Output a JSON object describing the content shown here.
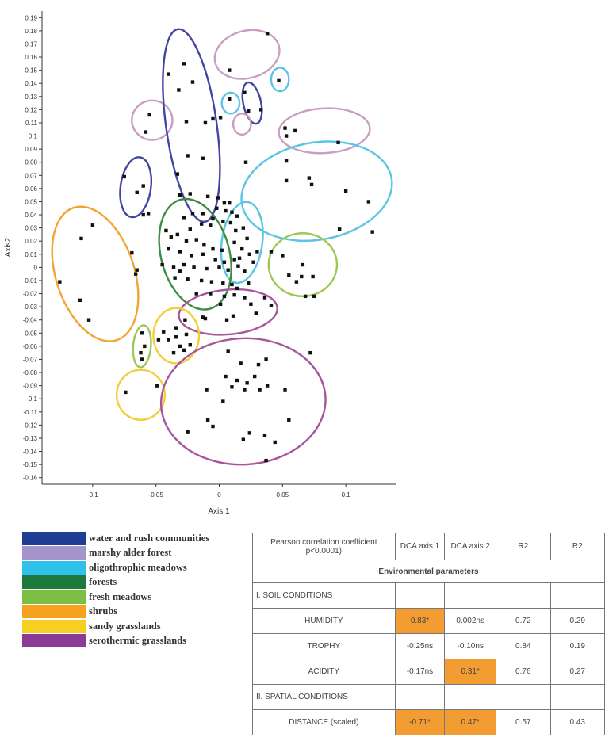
{
  "chart_data": {
    "type": "scatter",
    "xlabel": "Axis 1",
    "ylabel": "Axis2",
    "xlim": [
      -0.14,
      0.14
    ],
    "ylim": [
      -0.165,
      0.195
    ],
    "xticks": [
      -0.1,
      -0.05,
      0,
      0.05,
      0.1
    ],
    "xtick_labels": [
      "-0.1",
      "-0.05",
      "0",
      "0.05",
      "0.1"
    ],
    "yticks": [
      0.19,
      0.18,
      0.17,
      0.16,
      0.15,
      0.14,
      0.13,
      0.12,
      0.11,
      0.1,
      0.09,
      0.08,
      0.07,
      0.06,
      0.05,
      0.04,
      0.03,
      0.02,
      0.01,
      0,
      -0.01,
      -0.02,
      -0.03,
      -0.04,
      -0.05,
      -0.06,
      -0.07,
      -0.08,
      -0.09,
      -0.1,
      -0.11,
      -0.12,
      -0.13,
      -0.14,
      -0.15,
      -0.16
    ],
    "ytick_labels": [
      "0.19",
      "0.18",
      "0.17",
      "0.16",
      "0.15",
      "0.14",
      "0.13",
      "0.12",
      "0.11",
      "0.1",
      "0.09",
      "0.08",
      "0.07",
      "0.06",
      "0.05",
      "0.04",
      "0.03",
      "0.02",
      "0.01",
      "0",
      "-0.01",
      "-0.02",
      "-0.03",
      "-0.04",
      "-0.05",
      "-0.06",
      "-0.07",
      "-0.08",
      "-0.09",
      "-0.1",
      "-0.11",
      "-0.12",
      "-0.13",
      "-0.14",
      "-0.15",
      "-0.16"
    ],
    "grid": false,
    "points": [
      [
        0.038,
        0.178
      ],
      [
        0.008,
        0.15
      ],
      [
        0.047,
        0.142
      ],
      [
        0.008,
        0.128
      ],
      [
        0.02,
        0.133
      ],
      [
        0.023,
        0.119
      ],
      [
        0.033,
        0.12
      ],
      [
        0.06,
        0.104
      ],
      [
        0.052,
        0.106
      ],
      [
        0.053,
        0.1
      ],
      [
        0.094,
        0.095
      ],
      [
        -0.028,
        0.155
      ],
      [
        -0.04,
        0.147
      ],
      [
        -0.032,
        0.135
      ],
      [
        -0.021,
        0.141
      ],
      [
        -0.026,
        0.111
      ],
      [
        -0.011,
        0.11
      ],
      [
        -0.005,
        0.113
      ],
      [
        0.001,
        0.114
      ],
      [
        -0.025,
        0.085
      ],
      [
        -0.013,
        0.083
      ],
      [
        -0.033,
        0.071
      ],
      [
        -0.031,
        0.055
      ],
      [
        -0.023,
        0.056
      ],
      [
        -0.009,
        0.054
      ],
      [
        -0.055,
        0.116
      ],
      [
        -0.058,
        0.103
      ],
      [
        -0.075,
        0.069
      ],
      [
        -0.06,
        0.062
      ],
      [
        -0.065,
        0.057
      ],
      [
        -0.056,
        0.041
      ],
      [
        -0.06,
        0.04
      ],
      [
        0.021,
        0.08
      ],
      [
        0.053,
        0.081
      ],
      [
        0.053,
        0.066
      ],
      [
        0.071,
        0.068
      ],
      [
        0.073,
        0.063
      ],
      [
        0.1,
        0.058
      ],
      [
        0.118,
        0.05
      ],
      [
        0.121,
        0.027
      ],
      [
        0.095,
        0.029
      ],
      [
        -0.001,
        0.053
      ],
      [
        0.004,
        0.049
      ],
      [
        0.008,
        0.049
      ],
      [
        -0.002,
        0.045
      ],
      [
        0.005,
        0.043
      ],
      [
        0.01,
        0.042
      ],
      [
        -0.005,
        0.037
      ],
      [
        0.003,
        0.035
      ],
      [
        0.009,
        0.034
      ],
      [
        0.014,
        0.039
      ],
      [
        -0.021,
        0.041
      ],
      [
        -0.028,
        0.038
      ],
      [
        -0.014,
        0.033
      ],
      [
        -0.007,
        0.032
      ],
      [
        0.013,
        0.028
      ],
      [
        0.019,
        0.03
      ],
      [
        0.022,
        0.022
      ],
      [
        0.018,
        0.014
      ],
      [
        0.024,
        0.01
      ],
      [
        0.016,
        0.007
      ],
      [
        0.027,
        0.004
      ],
      [
        0.03,
        0.012
      ],
      [
        0.012,
        0.019
      ],
      [
        0.015,
        0.001
      ],
      [
        -0.042,
        0.028
      ],
      [
        -0.033,
        0.025
      ],
      [
        -0.026,
        0.02
      ],
      [
        -0.018,
        0.021
      ],
      [
        -0.012,
        0.017
      ],
      [
        -0.005,
        0.014
      ],
      [
        0.002,
        0.013
      ],
      [
        -0.04,
        0.014
      ],
      [
        -0.031,
        0.012
      ],
      [
        -0.022,
        0.009
      ],
      [
        -0.013,
        0.01
      ],
      [
        -0.003,
        0.006
      ],
      [
        0.004,
        0.004
      ],
      [
        0.012,
        0.006
      ],
      [
        -0.045,
        0.002
      ],
      [
        -0.036,
        0
      ],
      [
        -0.028,
        0.002
      ],
      [
        -0.02,
        0
      ],
      [
        -0.01,
        -0.001
      ],
      [
        0,
        0
      ],
      [
        0.007,
        -0.002
      ],
      [
        -0.035,
        -0.008
      ],
      [
        -0.025,
        -0.009
      ],
      [
        -0.014,
        -0.01
      ],
      [
        -0.006,
        -0.011
      ],
      [
        0.003,
        -0.012
      ],
      [
        0.01,
        -0.013
      ],
      [
        -0.018,
        -0.02
      ],
      [
        -0.007,
        -0.02
      ],
      [
        0.004,
        -0.022
      ],
      [
        0.012,
        -0.021
      ],
      [
        0.001,
        -0.028
      ],
      [
        0.014,
        -0.016
      ],
      [
        -0.038,
        0.023
      ],
      [
        -0.023,
        0.029
      ],
      [
        -0.013,
        0.041
      ],
      [
        -0.031,
        -0.003
      ],
      [
        0.02,
        -0.003
      ],
      [
        0.023,
        -0.012
      ],
      [
        -0.1,
        0.032
      ],
      [
        -0.109,
        0.022
      ],
      [
        -0.069,
        0.011
      ],
      [
        -0.065,
        -0.002
      ],
      [
        -0.066,
        -0.005
      ],
      [
        -0.126,
        -0.011
      ],
      [
        -0.11,
        -0.025
      ],
      [
        -0.103,
        -0.04
      ],
      [
        0.041,
        0.012
      ],
      [
        0.05,
        0.009
      ],
      [
        0.066,
        0.002
      ],
      [
        0.055,
        -0.006
      ],
      [
        0.065,
        -0.007
      ],
      [
        0.074,
        -0.007
      ],
      [
        0.061,
        -0.011
      ],
      [
        0.068,
        -0.022
      ],
      [
        0.075,
        -0.022
      ],
      [
        0.02,
        -0.023
      ],
      [
        0.036,
        -0.023
      ],
      [
        0.041,
        -0.029
      ],
      [
        0.029,
        -0.035
      ],
      [
        0.011,
        -0.037
      ],
      [
        0.025,
        -0.028
      ],
      [
        -0.013,
        -0.038
      ],
      [
        -0.011,
        -0.039
      ],
      [
        0.006,
        -0.04
      ],
      [
        -0.027,
        -0.04
      ],
      [
        -0.034,
        -0.046
      ],
      [
        -0.044,
        -0.049
      ],
      [
        -0.034,
        -0.053
      ],
      [
        -0.026,
        -0.051
      ],
      [
        -0.048,
        -0.055
      ],
      [
        -0.04,
        -0.055
      ],
      [
        -0.031,
        -0.06
      ],
      [
        -0.023,
        -0.059
      ],
      [
        -0.028,
        -0.063
      ],
      [
        -0.036,
        -0.065
      ],
      [
        -0.061,
        -0.05
      ],
      [
        -0.059,
        -0.06
      ],
      [
        -0.062,
        -0.065
      ],
      [
        -0.061,
        -0.07
      ],
      [
        -0.049,
        -0.09
      ],
      [
        -0.074,
        -0.095
      ],
      [
        0.007,
        -0.064
      ],
      [
        0.017,
        -0.073
      ],
      [
        0.031,
        -0.074
      ],
      [
        0.037,
        -0.07
      ],
      [
        0.072,
        -0.065
      ],
      [
        0.005,
        -0.083
      ],
      [
        0.014,
        -0.086
      ],
      [
        0.022,
        -0.088
      ],
      [
        0.028,
        -0.083
      ],
      [
        0.02,
        -0.093
      ],
      [
        0.01,
        -0.091
      ],
      [
        0.032,
        -0.093
      ],
      [
        0.038,
        -0.09
      ],
      [
        -0.01,
        -0.093
      ],
      [
        0.003,
        -0.102
      ],
      [
        0.052,
        -0.093
      ],
      [
        -0.009,
        -0.116
      ],
      [
        -0.025,
        -0.125
      ],
      [
        -0.005,
        -0.121
      ],
      [
        0.019,
        -0.131
      ],
      [
        0.024,
        -0.126
      ],
      [
        0.036,
        -0.128
      ],
      [
        0.055,
        -0.116
      ],
      [
        0.044,
        -0.133
      ],
      [
        0.037,
        -0.147
      ]
    ],
    "groups": [
      {
        "color": "#c99ec0",
        "cx": 0.022,
        "cy": 0.162,
        "rx": 0.026,
        "ry": 0.018,
        "angle": -15
      },
      {
        "color": "#4345a3",
        "cx": 0.026,
        "cy": 0.125,
        "rx": 0.007,
        "ry": 0.016,
        "angle": -12
      },
      {
        "color": "#5bc3e4",
        "cx": 0.048,
        "cy": 0.143,
        "rx": 0.007,
        "ry": 0.009,
        "angle": 0
      },
      {
        "color": "#5bc3e4",
        "cx": 0.009,
        "cy": 0.125,
        "rx": 0.007,
        "ry": 0.008,
        "angle": 0
      },
      {
        "color": "#c99ec0",
        "cx": 0.018,
        "cy": 0.109,
        "rx": 0.007,
        "ry": 0.008,
        "angle": 0
      },
      {
        "color": "#c99ec0",
        "cx": -0.053,
        "cy": 0.112,
        "rx": 0.016,
        "ry": 0.015,
        "angle": 0
      },
      {
        "color": "#c99ec0",
        "cx": 0.083,
        "cy": 0.104,
        "rx": 0.036,
        "ry": 0.017,
        "angle": -3
      },
      {
        "color": "#4345a3",
        "cx": -0.022,
        "cy": 0.108,
        "rx": 0.02,
        "ry": 0.074,
        "angle": -8
      },
      {
        "color": "#4345a3",
        "cx": -0.066,
        "cy": 0.061,
        "rx": 0.012,
        "ry": 0.023,
        "angle": 8
      },
      {
        "color": "#5bc3e4",
        "cx": 0.077,
        "cy": 0.058,
        "rx": 0.06,
        "ry": 0.037,
        "angle": -10
      },
      {
        "color": "#5bc3e4",
        "cx": 0.018,
        "cy": 0.019,
        "rx": 0.016,
        "ry": 0.031,
        "angle": 8
      },
      {
        "color": "#3c8c44",
        "cx": -0.019,
        "cy": 0.01,
        "rx": 0.027,
        "ry": 0.043,
        "angle": -15
      },
      {
        "color": "#f1a433",
        "cx": -0.098,
        "cy": -0.005,
        "rx": 0.031,
        "ry": 0.053,
        "angle": -18
      },
      {
        "color": "#9dc853",
        "cx": 0.066,
        "cy": 0.002,
        "rx": 0.027,
        "ry": 0.024,
        "angle": 0
      },
      {
        "color": "#a7569a",
        "cx": 0.007,
        "cy": -0.034,
        "rx": 0.039,
        "ry": 0.017,
        "angle": -5
      },
      {
        "color": "#f3ce35",
        "cx": -0.034,
        "cy": -0.052,
        "rx": 0.018,
        "ry": 0.021,
        "angle": 0
      },
      {
        "color": "#9dc853",
        "cx": -0.061,
        "cy": -0.06,
        "rx": 0.007,
        "ry": 0.016,
        "angle": 5
      },
      {
        "color": "#f3ce35",
        "cx": -0.062,
        "cy": -0.097,
        "rx": 0.019,
        "ry": 0.019,
        "angle": 0
      },
      {
        "color": "#a7569a",
        "cx": 0.019,
        "cy": -0.102,
        "rx": 0.065,
        "ry": 0.048,
        "angle": -3
      }
    ]
  },
  "legend": [
    {
      "label": "water and rush communities",
      "color": "#1e3d93"
    },
    {
      "label": "marshy alder forest",
      "color": "#a594c9"
    },
    {
      "label": "oligothrophic meadows",
      "color": "#2fc0ec"
    },
    {
      "label": "forests",
      "color": "#1b7a3c"
    },
    {
      "label": "fresh meadows",
      "color": "#7dbf45"
    },
    {
      "label": "shrubs",
      "color": "#f7a21e"
    },
    {
      "label": "sandy grasslands",
      "color": "#f7cf22"
    },
    {
      "label": "serothermic grasslands",
      "color": "#8c3b95"
    }
  ],
  "table": {
    "header": [
      "Pearson correlation coefficient p<0.0001)",
      "DCA axis 1",
      "DCA axis 2",
      "R2",
      "R2"
    ],
    "env_title": "Environmental parameters",
    "soil_title": "I. SOIL CONDITIONS",
    "spatial_title": "II. SPATIAL CONDITIONS",
    "rows": {
      "humidity": [
        "HUMIDITY",
        "0.83*",
        "0.002ns",
        "0.72",
        "0.29"
      ],
      "trophy": [
        "TROPHY",
        "-0.25ns",
        "-0.10ns",
        "0.84",
        "0.19"
      ],
      "acidity": [
        "ACIDITY",
        "-0.17ns",
        "0.31*",
        "0.76",
        "0.27"
      ],
      "distance": [
        "DISTANCE (scaled)",
        "-0.71*",
        "0.47*",
        "0.57",
        "0.43"
      ]
    },
    "highlight_color": "#f39c32"
  }
}
